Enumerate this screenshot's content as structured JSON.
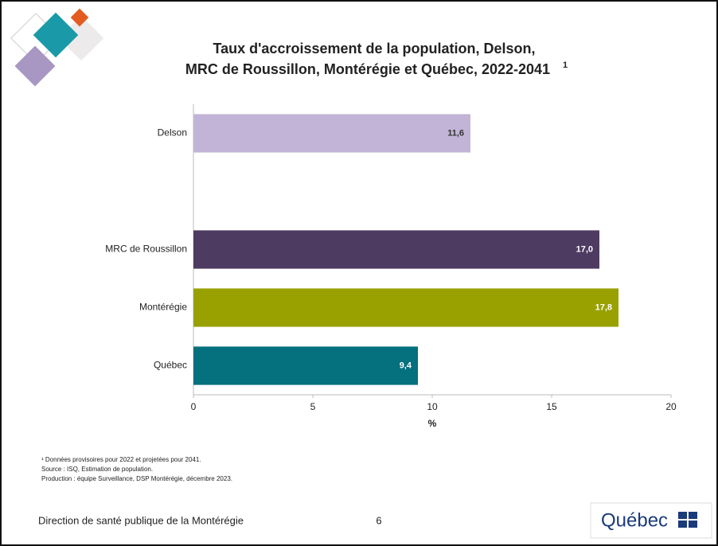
{
  "chart_data": {
    "type": "hbar",
    "title": [
      "Taux d'accroissement de la population, Delson,",
      "MRC de Roussillon, Montérégie et Québec, 2022-2041"
    ],
    "title_superscript": "1",
    "categories": [
      "Delson",
      null,
      "MRC de Roussillon",
      "Montérégie",
      "Québec"
    ],
    "values": [
      11.6,
      null,
      17.0,
      17.8,
      9.4
    ],
    "value_labels": [
      "11,6",
      null,
      "17,0",
      "17,8",
      "9,4"
    ],
    "colors": [
      "#c2b4d6",
      null,
      "#4e3b62",
      "#98a100",
      "#05707e"
    ],
    "xlim": [
      0,
      20
    ],
    "xticks": [
      0,
      5,
      10,
      15,
      20
    ],
    "xlabel": "%",
    "grid": false
  },
  "footnotes": [
    "¹ Données provisoires pour 2022 et projetées pour 2041.",
    "Source : ISQ, Estimation de population.",
    "Production : équipe Surveillance, DSP Montérégie, décembre 2023."
  ],
  "footer": {
    "organization": "Direction de santé publique de la Montérégie",
    "page": "6",
    "logo": "Québec"
  }
}
